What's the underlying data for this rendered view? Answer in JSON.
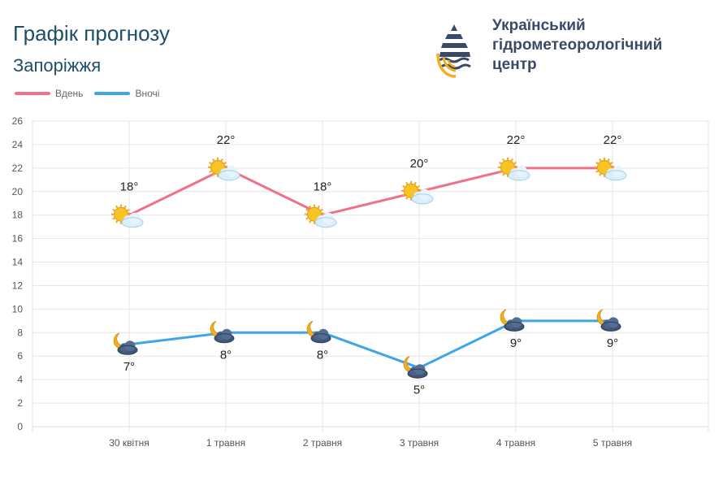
{
  "header": {
    "title": "Графік прогнозу",
    "city": "Запоріжжя"
  },
  "org": {
    "line1": "Український",
    "line2": "гідрометеорологічний",
    "line3": "центр"
  },
  "colors": {
    "day": "#f0708a",
    "night": "#3ea6e8",
    "title": "#1f4e6b"
  },
  "chart_data": {
    "type": "line",
    "categories": [
      "30 квітня",
      "1 травня",
      "2 травня",
      "3 травня",
      "4 травня",
      "5 травня"
    ],
    "series": [
      {
        "name": "Вдень",
        "values": [
          18,
          22,
          18,
          20,
          22,
          22
        ],
        "labels": [
          "18°",
          "22°",
          "18°",
          "20°",
          "22°",
          "22°"
        ],
        "icon": "sun-cloud-icon"
      },
      {
        "name": "Вночі",
        "values": [
          7,
          8,
          8,
          5,
          9,
          9
        ],
        "labels": [
          "7°",
          "8°",
          "8°",
          "5°",
          "9°",
          "9°"
        ],
        "icon": "moon-cloud-icon"
      }
    ],
    "ylim": [
      0,
      26
    ],
    "yticks": [
      "0",
      "2",
      "4",
      "6",
      "8",
      "10",
      "12",
      "14",
      "16",
      "18",
      "20",
      "22",
      "24",
      "26"
    ],
    "grid": true,
    "legend": "top-left"
  }
}
